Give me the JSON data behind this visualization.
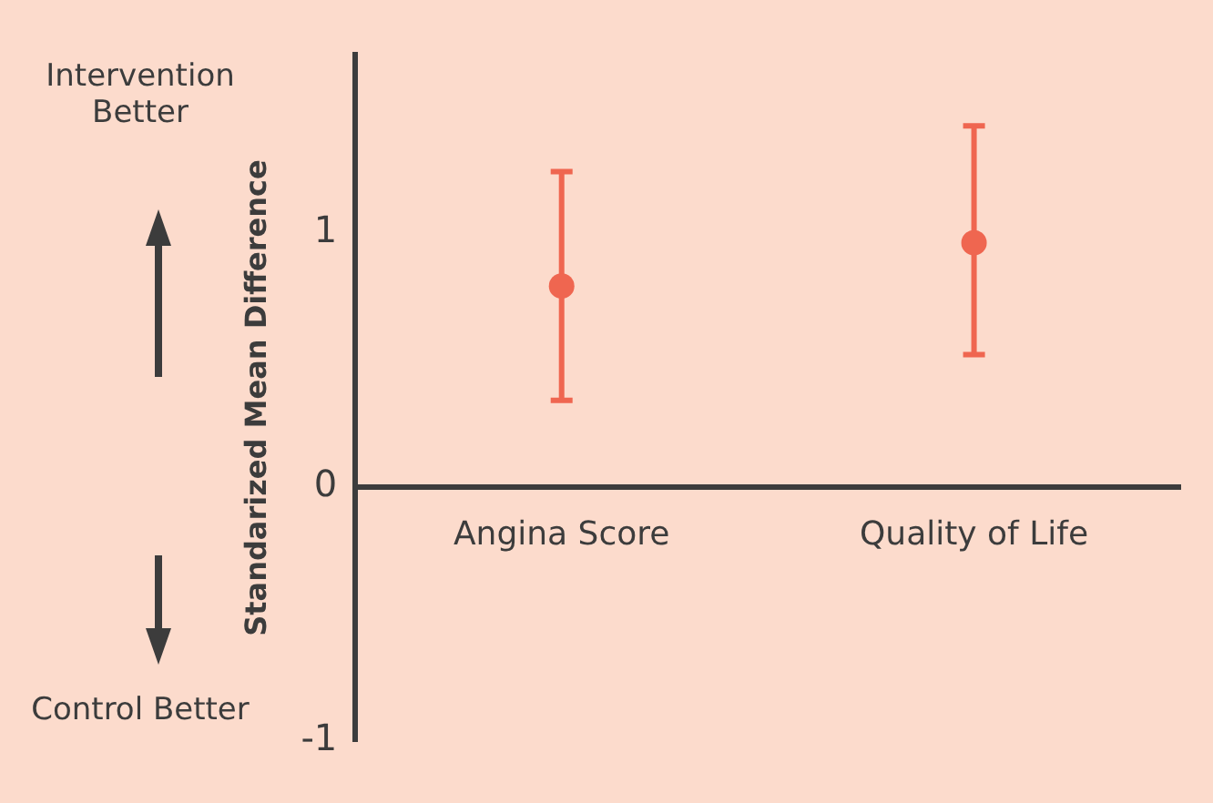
{
  "chart_data": {
    "type": "scatter",
    "ylabel": "Standarized Mean Difference",
    "categories": [
      "Angina Score",
      "Quality of Life"
    ],
    "series": [
      {
        "color": "#ef6650",
        "values": [
          0.79,
          0.96
        ],
        "errors": [
          [
            0.34,
            1.24
          ],
          [
            0.52,
            1.42
          ]
        ]
      }
    ],
    "ylim": [
      -1.0,
      1.7
    ],
    "yticks": [
      -1,
      0,
      1
    ],
    "grid": false,
    "legend": false,
    "marker": "circle",
    "annotations": [
      "Intervention Better",
      "Control Better"
    ]
  }
}
